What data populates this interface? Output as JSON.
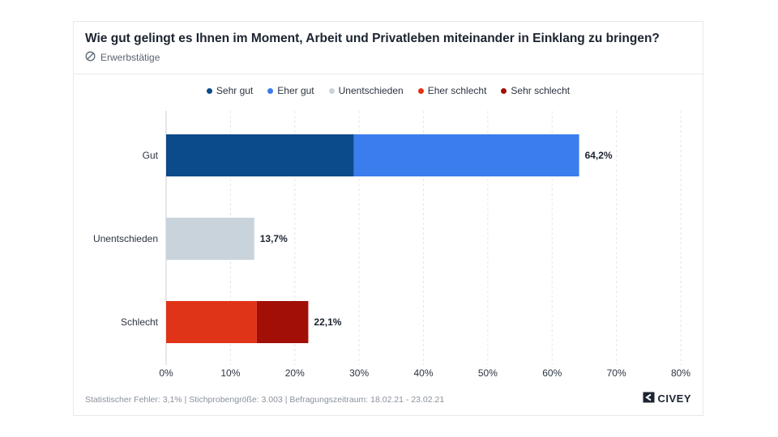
{
  "header": {
    "title": "Wie gut gelingt es Ihnen im Moment, Arbeit und Privatleben miteinander in Einklang zu bringen?",
    "subtitle": "Erwerbstätige",
    "subtitle_icon": "target-icon"
  },
  "chart_data": {
    "type": "bar",
    "orientation": "horizontal",
    "stacked": true,
    "categories": [
      "Gut",
      "Unentschieden",
      "Schlecht"
    ],
    "series": [
      {
        "name": "Sehr gut",
        "color": "#0b4a8b",
        "values": [
          29.2,
          0,
          0
        ]
      },
      {
        "name": "Eher gut",
        "color": "#3b7ded",
        "values": [
          35.0,
          0,
          0
        ]
      },
      {
        "name": "Unentschieden",
        "color": "#c9d3dc",
        "values": [
          0,
          13.7,
          0
        ]
      },
      {
        "name": "Eher schlecht",
        "color": "#e03418",
        "values": [
          0,
          0,
          14.1
        ]
      },
      {
        "name": "Sehr schlecht",
        "color": "#a10f06",
        "values": [
          0,
          0,
          8.0
        ]
      }
    ],
    "totals": [
      "64,2%",
      "13,7%",
      "22,1%"
    ],
    "xlim": [
      0,
      80
    ],
    "xticks": [
      "0%",
      "10%",
      "20%",
      "30%",
      "40%",
      "50%",
      "60%",
      "70%",
      "80%"
    ],
    "grid": true,
    "legend_position": "top-center"
  },
  "footer": {
    "note": "Statistischer Fehler: 3,1% | Stichprobengröße: 3.003 | Befragungszeitraum: 18.02.21 - 23.02.21",
    "brand": "CIVEY",
    "brand_icon": "civey-logo-icon"
  }
}
